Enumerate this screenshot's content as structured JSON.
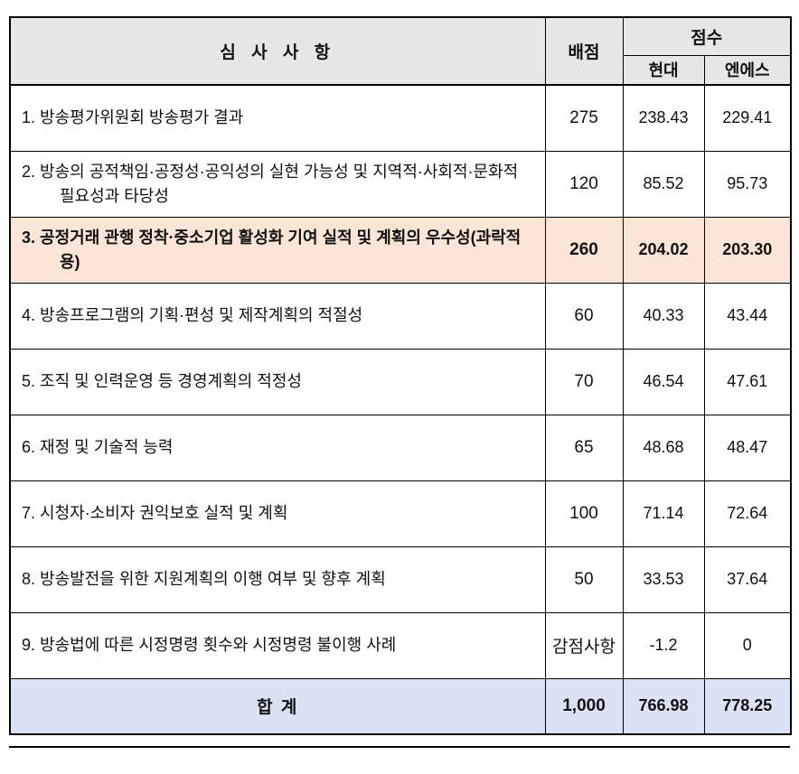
{
  "colors": {
    "header_bg": "#e7e7e7",
    "highlight_bg": "#fbe5d6",
    "total_bg": "#dae3f3",
    "border_color": "#000000"
  },
  "table": {
    "header": {
      "criteria": "심 사 사 항",
      "points": "배점",
      "score": "점수",
      "hyundai": "현대",
      "ns": "엔에스"
    },
    "rows": [
      {
        "criteria": "1. 방송평가위원회 방송평가 결과",
        "points": "275",
        "hyundai": "238.43",
        "ns": "229.41",
        "highlight": ""
      },
      {
        "criteria": "2. 방송의 공적책임·공정성·공익성의 실현 가능성 및 지역적·사회적·문화적 필요성과 타당성",
        "points": "120",
        "hyundai": "85.52",
        "ns": "95.73",
        "highlight": ""
      },
      {
        "criteria": "3. 공정거래 관행 정착·중소기업 활성화 기여 실적 및 계획의 우수성(과락적용)",
        "points": "260",
        "hyundai": "204.02",
        "ns": "203.30",
        "highlight": "peach"
      },
      {
        "criteria": "4. 방송프로그램의 기획·편성 및 제작계획의 적절성",
        "points": "60",
        "hyundai": "40.33",
        "ns": "43.44",
        "highlight": ""
      },
      {
        "criteria": "5. 조직 및 인력운영 등 경영계획의 적정성",
        "points": "70",
        "hyundai": "46.54",
        "ns": "47.61",
        "highlight": ""
      },
      {
        "criteria": "6. 재정 및 기술적 능력",
        "points": "65",
        "hyundai": "48.68",
        "ns": "48.47",
        "highlight": ""
      },
      {
        "criteria": "7. 시청자·소비자 권익보호 실적 및 계획",
        "points": "100",
        "hyundai": "71.14",
        "ns": "72.64",
        "highlight": ""
      },
      {
        "criteria": "8. 방송발전을 위한 지원계획의 이행 여부 및 향후 계획",
        "points": "50",
        "hyundai": "33.53",
        "ns": "37.64",
        "highlight": ""
      },
      {
        "criteria": "9. 방송법에 따른 시정명령 횟수와 시정명령 불이행 사례",
        "points": "감점사항",
        "hyundai": "-1.2",
        "ns": "0",
        "highlight": ""
      }
    ],
    "total": {
      "label": "합  계",
      "points": "1,000",
      "hyundai": "766.98",
      "ns": "778.25"
    }
  }
}
